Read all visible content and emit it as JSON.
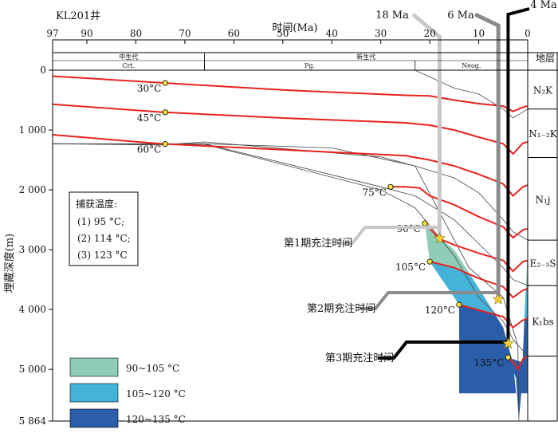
{
  "chart_data": {
    "type": "line",
    "title": "KL201井",
    "xlabel": "时间(Ma)",
    "ylabel": "埋藏深度(m)",
    "xlim": [
      97,
      0
    ],
    "ylim": [
      0,
      5864
    ],
    "x_ticks": [
      97,
      90,
      80,
      70,
      60,
      50,
      40,
      30,
      20,
      10,
      0
    ],
    "y_ticks": [
      0,
      1000,
      2000,
      3000,
      4000,
      5000,
      5864
    ],
    "y_tick_labels": [
      "0",
      "1 000",
      "2 000",
      "3 000",
      "4 000",
      "5 000",
      "5 864"
    ],
    "era_bands": [
      {
        "label": "中生代",
        "x_from": 97,
        "x_to": 66
      },
      {
        "label": "新生代",
        "x_from": 66,
        "x_to": 0
      }
    ],
    "period_bands": [
      {
        "label": "Crt.",
        "x_from": 97,
        "x_to": 66
      },
      {
        "label": "Pg.",
        "x_from": 66,
        "x_to": 23
      },
      {
        "label": "Neog.",
        "x_from": 23,
        "x_to": 0
      }
    ],
    "strata_header": "地层",
    "strata": [
      {
        "label": "N₂K",
        "top": 0,
        "bottom": 650
      },
      {
        "label": "N₁₋₂K",
        "top": 650,
        "bottom": 1460
      },
      {
        "label": "N₁j",
        "top": 1460,
        "bottom": 2840
      },
      {
        "label": "E₂₋₃S",
        "top": 2840,
        "bottom": 3600
      },
      {
        "label": "K₁bs",
        "top": 3600,
        "bottom": 4780
      }
    ],
    "burial_curves": [
      {
        "points": [
          [
            97,
            0
          ],
          [
            66,
            0
          ],
          [
            30,
            0
          ],
          [
            23,
            0
          ],
          [
            15,
            300
          ],
          [
            10,
            400
          ],
          [
            5,
            650
          ],
          [
            3,
            800
          ],
          [
            0,
            650
          ]
        ]
      },
      {
        "points": [
          [
            97,
            1230
          ],
          [
            75,
            1250
          ],
          [
            66,
            1200
          ],
          [
            30,
            1450
          ],
          [
            23,
            1600
          ],
          [
            15,
            1800
          ],
          [
            10,
            2050
          ],
          [
            5,
            2500
          ],
          [
            3,
            2700
          ],
          [
            0,
            2840
          ]
        ]
      },
      {
        "points": [
          [
            97,
            1230
          ],
          [
            80,
            1240
          ],
          [
            66,
            1230
          ],
          [
            30,
            1950
          ],
          [
            23,
            2100
          ],
          [
            15,
            2500
          ],
          [
            10,
            2900
          ],
          [
            5,
            3300
          ],
          [
            3,
            3500
          ],
          [
            0,
            3600
          ]
        ]
      },
      {
        "points": [
          [
            97,
            1230
          ],
          [
            80,
            1235
          ],
          [
            66,
            1240
          ],
          [
            30,
            2000
          ],
          [
            23,
            2300
          ],
          [
            15,
            3100
          ],
          [
            10,
            3800
          ],
          [
            5,
            4200
          ],
          [
            3,
            4500
          ],
          [
            0,
            4780
          ]
        ]
      }
    ],
    "isotherms": [
      {
        "temp": "30°C",
        "label_x": 74,
        "points": [
          [
            97,
            100
          ],
          [
            75,
            210
          ],
          [
            50,
            330
          ],
          [
            25,
            420
          ],
          [
            20,
            430
          ],
          [
            15,
            500
          ],
          [
            10,
            560
          ],
          [
            5,
            600
          ],
          [
            3,
            690
          ],
          [
            1,
            620
          ],
          [
            0,
            600
          ]
        ]
      },
      {
        "temp": "45°C",
        "label_x": 74,
        "points": [
          [
            97,
            570
          ],
          [
            75,
            700
          ],
          [
            50,
            800
          ],
          [
            25,
            880
          ],
          [
            20,
            920
          ],
          [
            15,
            1000
          ],
          [
            10,
            1120
          ],
          [
            5,
            1230
          ],
          [
            3,
            1400
          ],
          [
            1,
            1220
          ],
          [
            0,
            1200
          ]
        ]
      },
      {
        "temp": "60°C",
        "label_x": 74,
        "points": [
          [
            97,
            1080
          ],
          [
            75,
            1230
          ],
          [
            50,
            1330
          ],
          [
            25,
            1430
          ],
          [
            20,
            1500
          ],
          [
            15,
            1600
          ],
          [
            10,
            1740
          ],
          [
            5,
            1900
          ],
          [
            3,
            2100
          ],
          [
            1,
            1950
          ],
          [
            0,
            1920
          ]
        ]
      },
      {
        "temp": "75°C",
        "label_x": 28,
        "points": [
          [
            28,
            1950
          ],
          [
            25,
            1950
          ],
          [
            22,
            1970
          ],
          [
            20,
            2100
          ],
          [
            15,
            2250
          ],
          [
            10,
            2450
          ],
          [
            5,
            2620
          ],
          [
            3,
            2800
          ],
          [
            1,
            2670
          ],
          [
            0,
            2650
          ]
        ]
      },
      {
        "temp": "90°C",
        "label_x": 21,
        "points": [
          [
            21,
            2560
          ],
          [
            18,
            2820
          ],
          [
            15,
            2920
          ],
          [
            10,
            3060
          ],
          [
            5,
            3180
          ],
          [
            3,
            3360
          ],
          [
            1,
            3200
          ],
          [
            0,
            3180
          ]
        ]
      },
      {
        "temp": "105°C",
        "label_x": 20,
        "points": [
          [
            20,
            3200
          ],
          [
            15,
            3300
          ],
          [
            10,
            3480
          ],
          [
            5,
            3620
          ],
          [
            3,
            3800
          ],
          [
            1,
            3680
          ],
          [
            0,
            3650
          ]
        ]
      },
      {
        "temp": "120°C",
        "label_x": 14,
        "points": [
          [
            14,
            3920
          ],
          [
            10,
            4010
          ],
          [
            5,
            4120
          ],
          [
            3,
            4300
          ],
          [
            1,
            4180
          ],
          [
            0,
            4150
          ]
        ]
      },
      {
        "temp": "135°C",
        "label_x": 4,
        "points": [
          [
            4,
            4800
          ],
          [
            3,
            4880
          ],
          [
            2,
            5000
          ],
          [
            1,
            4830
          ],
          [
            0,
            4780
          ]
        ]
      }
    ],
    "temperature_zones": [
      {
        "label": "90~105 °C",
        "color": "#8fcdb8"
      },
      {
        "label": "105~120 °C",
        "color": "#45b3d9"
      },
      {
        "label": "120~135 °C",
        "color": "#2a5ea8"
      }
    ],
    "trap_temperature": {
      "title": "捕获温度:",
      "items": [
        "(1) 95 °C;",
        "(2) 114 °C;",
        "(3) 123 °C"
      ]
    },
    "charging_events": [
      {
        "label": "18 Ma",
        "age": 18,
        "color": "#c8c8c8"
      },
      {
        "label": "6 Ma",
        "age": 6,
        "color": "#8c8c8c"
      },
      {
        "label": "4 Ma",
        "age": 4,
        "color": "#000000"
      }
    ],
    "charging_stars": [
      {
        "label": "第1期充注时间",
        "age": 18,
        "depth": 2810
      },
      {
        "label": "第2期充注时间",
        "age": 6,
        "depth": 3830
      },
      {
        "label": "第3期充注时间",
        "age": 4,
        "depth": 4570
      }
    ],
    "colors": {
      "isotherm": "#e8231f",
      "burial": "#444444",
      "star": "#f7d33c",
      "dot": "#f2e33c"
    }
  }
}
